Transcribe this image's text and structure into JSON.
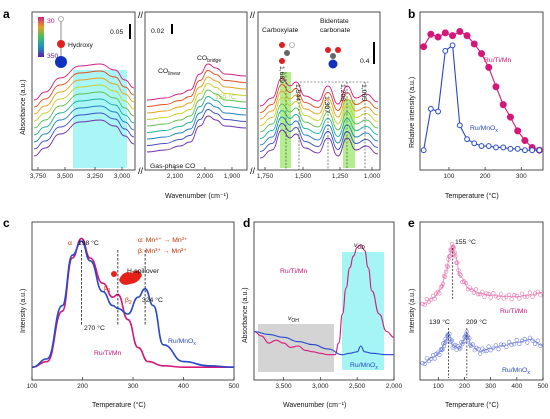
{
  "colors": {
    "ru_ti_mn": "#d4187a",
    "ru_mno": "#2848c8",
    "ru_ti_mn_light": "#e676b0",
    "ru_mno_light": "#7080d8",
    "cyan": "#8ef2f2",
    "green": "#9be86a",
    "grey": "#d4d4d4",
    "gradient": [
      "#e8e020",
      "#40c060",
      "#2090c0",
      "#4040c0",
      "#8020a0",
      "#d02080"
    ]
  },
  "panels": {
    "a": {
      "label": "a",
      "xlabel": "Wavenumber (cm⁻¹)",
      "ylabel": "Absorbance (a.u.)",
      "xticks1": [
        "3,750",
        "3,500",
        "3,250",
        "3,000"
      ],
      "xticks2": [
        "2,100",
        "2,000",
        "1,900"
      ],
      "xticks3": [
        "1,750",
        "1,500",
        "1,250",
        "1,000"
      ],
      "legend_temps": {
        "top": "30",
        "bottom": "350"
      },
      "hydroxy": "Hydroxy",
      "scale1": "0.05",
      "scale2": "0.02",
      "scale3": "0.4",
      "co_linear": "CO",
      "co_linear_sub": "linear",
      "co_bridge": "CO",
      "co_bridge_sub": "bridge",
      "temp_label": "150 °C",
      "gas_phase": "Gas-phase CO",
      "carboxylate": "Carboxylate",
      "bidentate_1": "Bidentate",
      "bidentate_2": "carbonate",
      "peaks": [
        "1,669",
        "1,544",
        "1,307",
        "1,208",
        "1,065"
      ]
    },
    "b": {
      "label": "b",
      "xlabel": "Temperature (°C)",
      "ylabel": "Relative intensity (a.u.)",
      "xticks": [
        "100",
        "200",
        "300"
      ],
      "series_labels": [
        "Ru/Ti/Mn",
        "Ru/MnO"
      ],
      "sub_x": "x"
    },
    "c": {
      "label": "c",
      "xlabel": "Temperature (°C)",
      "ylabel": "Intensity (a.u.)",
      "xticks": [
        "100",
        "200",
        "300",
        "400",
        "500"
      ],
      "alpha_label": "α",
      "beta1": "β",
      "beta1_sub": "1",
      "beta2": "β",
      "beta2_sub": "2",
      "legend_alpha": "α: Mn⁴⁺ → Mn³⁺",
      "legend_beta": "β: Mn³⁺ → Mn²⁺",
      "h_spillover": "H-spillover",
      "t198": "198 °C",
      "t270": "270 °C",
      "t324": "324 °C",
      "ru_mno": "Ru/MnO",
      "ru_mno_sub": "x",
      "ru_ti_mn": "Ru/Ti/Mn"
    },
    "d": {
      "label": "d",
      "xlabel": "Wavenumber (cm⁻¹)",
      "ylabel": "Absorbance (a.u.)",
      "xticks": [
        "3,500",
        "3,000",
        "2,500",
        "2,000"
      ],
      "v_od": "v",
      "v_od_sub": "OD",
      "v_oh": "v",
      "v_oh_sub": "OH",
      "ru_ti_mn": "Ru/Ti/Mn",
      "ru_mno": "Ru/MnO",
      "ru_mno_sub": "x"
    },
    "e": {
      "label": "e",
      "xlabel": "Temperature (°C)",
      "ylabel": "Intensity (a.u.)",
      "xticks": [
        "100",
        "200",
        "300",
        "400",
        "500"
      ],
      "t155": "155 °C",
      "t139": "139 °C",
      "t209": "209 °C",
      "ru_ti_mn": "Ru/Ti/Mn",
      "ru_mno": "Ru/MnO",
      "ru_mno_sub": "x"
    }
  },
  "chart_data": [
    {
      "panel": "b",
      "type": "line",
      "xlabel": "Temperature (°C)",
      "ylabel": "Relative intensity (a.u.)",
      "xlim": [
        20,
        360
      ],
      "series": [
        {
          "name": "Ru/Ti/Mn",
          "x": [
            30,
            50,
            70,
            90,
            110,
            130,
            150,
            170,
            190,
            210,
            230,
            250,
            270,
            290,
            310,
            330,
            350
          ],
          "values": [
            0.85,
            0.94,
            0.92,
            0.95,
            0.93,
            0.96,
            0.93,
            0.87,
            0.8,
            0.7,
            0.56,
            0.43,
            0.34,
            0.24,
            0.17,
            0.12,
            0.1
          ]
        },
        {
          "name": "Ru/MnO_x",
          "x": [
            30,
            50,
            70,
            90,
            110,
            130,
            150,
            170,
            190,
            210,
            230,
            250,
            270,
            290,
            310,
            330,
            350
          ],
          "values": [
            0.1,
            0.4,
            0.38,
            0.82,
            0.86,
            0.28,
            0.18,
            0.15,
            0.13,
            0.13,
            0.12,
            0.12,
            0.11,
            0.11,
            0.1,
            0.1,
            0.1
          ]
        }
      ]
    },
    {
      "panel": "c",
      "type": "line",
      "xlabel": "Temperature (°C)",
      "ylabel": "Intensity (a.u.)",
      "xlim": [
        100,
        500
      ],
      "series": [
        {
          "name": "Ru/Ti/Mn",
          "x": [
            100,
            130,
            160,
            180,
            198,
            215,
            240,
            260,
            270,
            290,
            310,
            330,
            360,
            400,
            450,
            500
          ],
          "values": [
            0.02,
            0.06,
            0.42,
            0.8,
            0.94,
            0.8,
            0.62,
            0.52,
            0.54,
            0.36,
            0.16,
            0.06,
            0.03,
            0.02,
            0.02,
            0.02
          ]
        },
        {
          "name": "Ru/MnO_x",
          "x": [
            100,
            130,
            160,
            180,
            198,
            215,
            240,
            260,
            270,
            290,
            310,
            324,
            340,
            360,
            400,
            450,
            500
          ],
          "values": [
            0.02,
            0.08,
            0.46,
            0.82,
            0.92,
            0.78,
            0.56,
            0.46,
            0.44,
            0.4,
            0.52,
            0.58,
            0.46,
            0.18,
            0.06,
            0.03,
            0.02
          ]
        }
      ]
    },
    {
      "panel": "d",
      "type": "line",
      "xlabel": "Wavenumber (cm⁻¹)",
      "ylabel": "Absorbance (a.u.)",
      "xlim": [
        3900,
        2000
      ],
      "series": [
        {
          "name": "Ru/Ti/Mn",
          "x": [
            3900,
            3800,
            3700,
            3600,
            3500,
            3400,
            3300,
            3200,
            3100,
            3000,
            2900,
            2800,
            2750,
            2700,
            2650,
            2600,
            2550,
            2500,
            2450,
            2400,
            2350,
            2300,
            2200,
            2100,
            2000
          ],
          "values": [
            0.3,
            0.27,
            0.22,
            0.24,
            0.22,
            0.19,
            0.2,
            0.17,
            0.16,
            0.15,
            0.14,
            0.14,
            0.22,
            0.42,
            0.6,
            0.74,
            0.82,
            0.88,
            0.9,
            0.86,
            0.74,
            0.58,
            0.42,
            0.3,
            0.26
          ]
        },
        {
          "name": "Ru/MnO_x",
          "x": [
            3900,
            3700,
            3500,
            3300,
            3100,
            2900,
            2700,
            2600,
            2500,
            2450,
            2400,
            2300,
            2100,
            2000
          ],
          "values": [
            0.3,
            0.28,
            0.26,
            0.23,
            0.21,
            0.18,
            0.14,
            0.15,
            0.16,
            0.2,
            0.16,
            0.15,
            0.14,
            0.14
          ]
        }
      ]
    },
    {
      "panel": "e",
      "type": "scatter",
      "xlabel": "Temperature (°C)",
      "ylabel": "Intensity (a.u.)",
      "xlim": [
        30,
        500
      ],
      "series": [
        {
          "name": "Ru/Ti/Mn",
          "x": [
            40,
            80,
            110,
            130,
            145,
            155,
            165,
            185,
            220,
            260,
            300,
            350,
            400,
            450,
            500
          ],
          "values": [
            0.5,
            0.54,
            0.6,
            0.72,
            0.84,
            0.9,
            0.82,
            0.68,
            0.6,
            0.57,
            0.56,
            0.55,
            0.55,
            0.56,
            0.58
          ]
        },
        {
          "name": "Ru/MnO_x",
          "x": [
            40,
            80,
            110,
            125,
            139,
            155,
            180,
            200,
            209,
            225,
            260,
            300,
            350,
            400,
            450,
            500
          ],
          "values": [
            0.1,
            0.14,
            0.18,
            0.24,
            0.3,
            0.22,
            0.2,
            0.26,
            0.3,
            0.22,
            0.18,
            0.2,
            0.22,
            0.24,
            0.26,
            0.22
          ]
        }
      ]
    }
  ]
}
